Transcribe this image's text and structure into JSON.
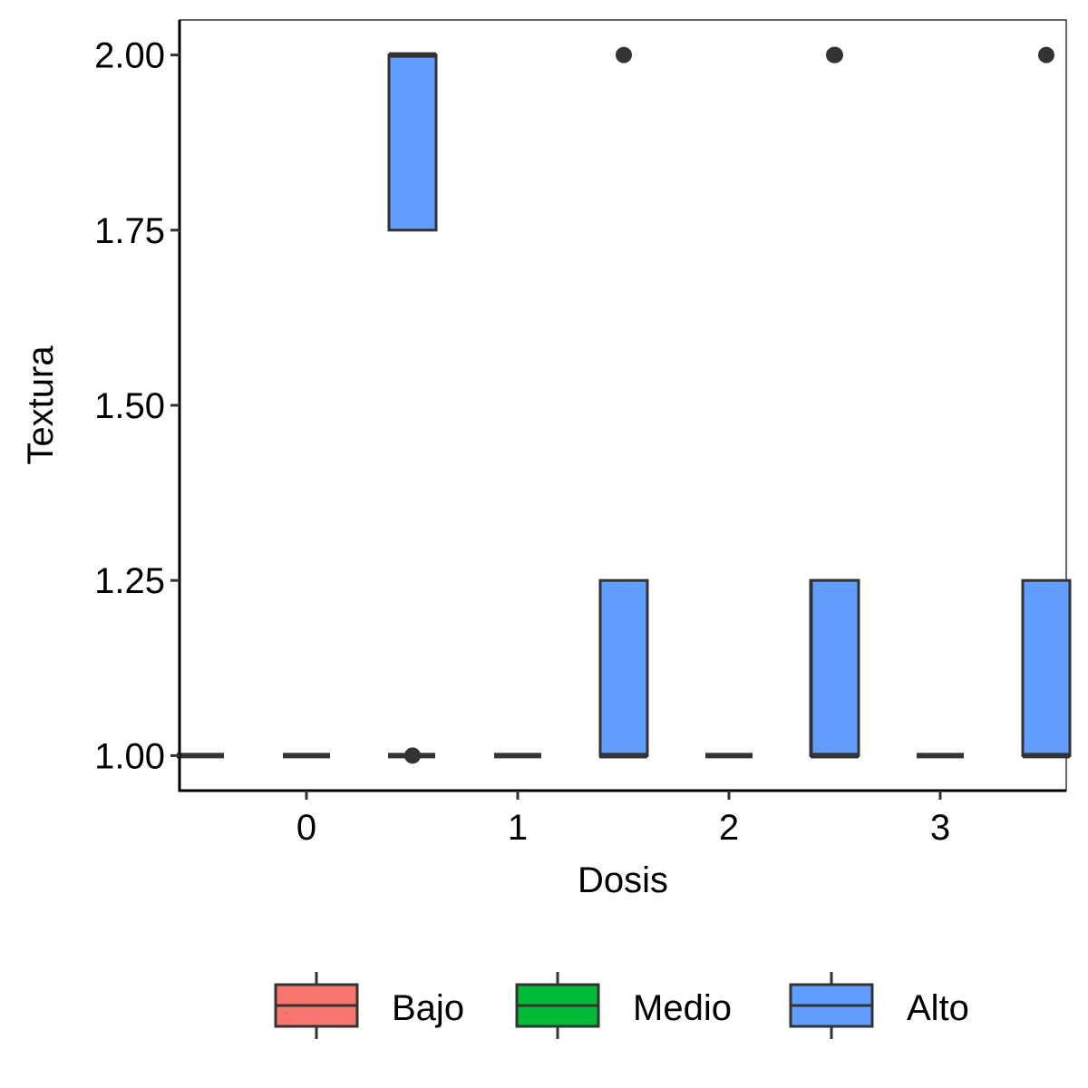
{
  "chart_data": {
    "type": "boxplot",
    "xlabel": "Dosis",
    "ylabel": "Textura",
    "categories": [
      "0",
      "1",
      "2",
      "3"
    ],
    "ylim": [
      0.95,
      2.05
    ],
    "yticks": [
      1.0,
      1.25,
      1.5,
      1.75,
      2.0
    ],
    "ytick_labels": [
      "1.00",
      "1.25",
      "1.50",
      "1.75",
      "2.00"
    ],
    "grid": false,
    "legend_position": "bottom",
    "series": [
      {
        "name": "Bajo",
        "color": "#F8766D",
        "boxes": [
          {
            "category": "0",
            "q1": 1.0,
            "median": 1.0,
            "q3": 1.0,
            "whisker_low": 1.0,
            "whisker_high": 1.0,
            "outliers": []
          },
          {
            "category": "1",
            "q1": 1.0,
            "median": 1.0,
            "q3": 1.0,
            "whisker_low": 1.0,
            "whisker_high": 1.0,
            "outliers": []
          },
          {
            "category": "2",
            "q1": 1.0,
            "median": 1.0,
            "q3": 1.0,
            "whisker_low": 1.0,
            "whisker_high": 1.0,
            "outliers": []
          },
          {
            "category": "3",
            "q1": 1.0,
            "median": 1.0,
            "q3": 1.25,
            "whisker_low": 1.0,
            "whisker_high": 1.25,
            "outliers": []
          }
        ]
      },
      {
        "name": "Medio",
        "color": "#00BA38",
        "boxes": [
          {
            "category": "0",
            "q1": 1.0,
            "median": 1.0,
            "q3": 1.0,
            "whisker_low": 1.0,
            "whisker_high": 1.0,
            "outliers": []
          },
          {
            "category": "1",
            "q1": 1.0,
            "median": 1.0,
            "q3": 1.0,
            "whisker_low": 1.0,
            "whisker_high": 1.0,
            "outliers": []
          },
          {
            "category": "2",
            "q1": 1.0,
            "median": 1.0,
            "q3": 1.0,
            "whisker_low": 1.0,
            "whisker_high": 1.0,
            "outliers": []
          },
          {
            "category": "3",
            "q1": 1.0,
            "median": 1.0,
            "q3": 1.0,
            "whisker_low": 1.0,
            "whisker_high": 1.0,
            "outliers": []
          }
        ]
      },
      {
        "name": "Alto",
        "color": "#619CFF",
        "boxes": [
          {
            "category": "0",
            "q1": 1.75,
            "median": 2.0,
            "q3": 2.0,
            "whisker_low": 1.75,
            "whisker_high": 2.0,
            "outliers": [
              1.0
            ]
          },
          {
            "category": "1",
            "q1": 1.0,
            "median": 1.0,
            "q3": 1.25,
            "whisker_low": 1.0,
            "whisker_high": 1.25,
            "outliers": [
              2.0
            ]
          },
          {
            "category": "2",
            "q1": 1.0,
            "median": 1.0,
            "q3": 1.25,
            "whisker_low": 1.0,
            "whisker_high": 1.25,
            "outliers": [
              2.0
            ]
          },
          {
            "category": "3",
            "q1": 1.0,
            "median": 1.0,
            "q3": 1.25,
            "whisker_low": 1.0,
            "whisker_high": 1.25,
            "outliers": [
              2.0
            ]
          }
        ]
      }
    ],
    "extra_outliers": [
      {
        "category": "3",
        "series": "Bajo",
        "value": 2.0
      }
    ],
    "legend": {
      "entries": [
        "Bajo",
        "Medio",
        "Alto"
      ]
    }
  }
}
